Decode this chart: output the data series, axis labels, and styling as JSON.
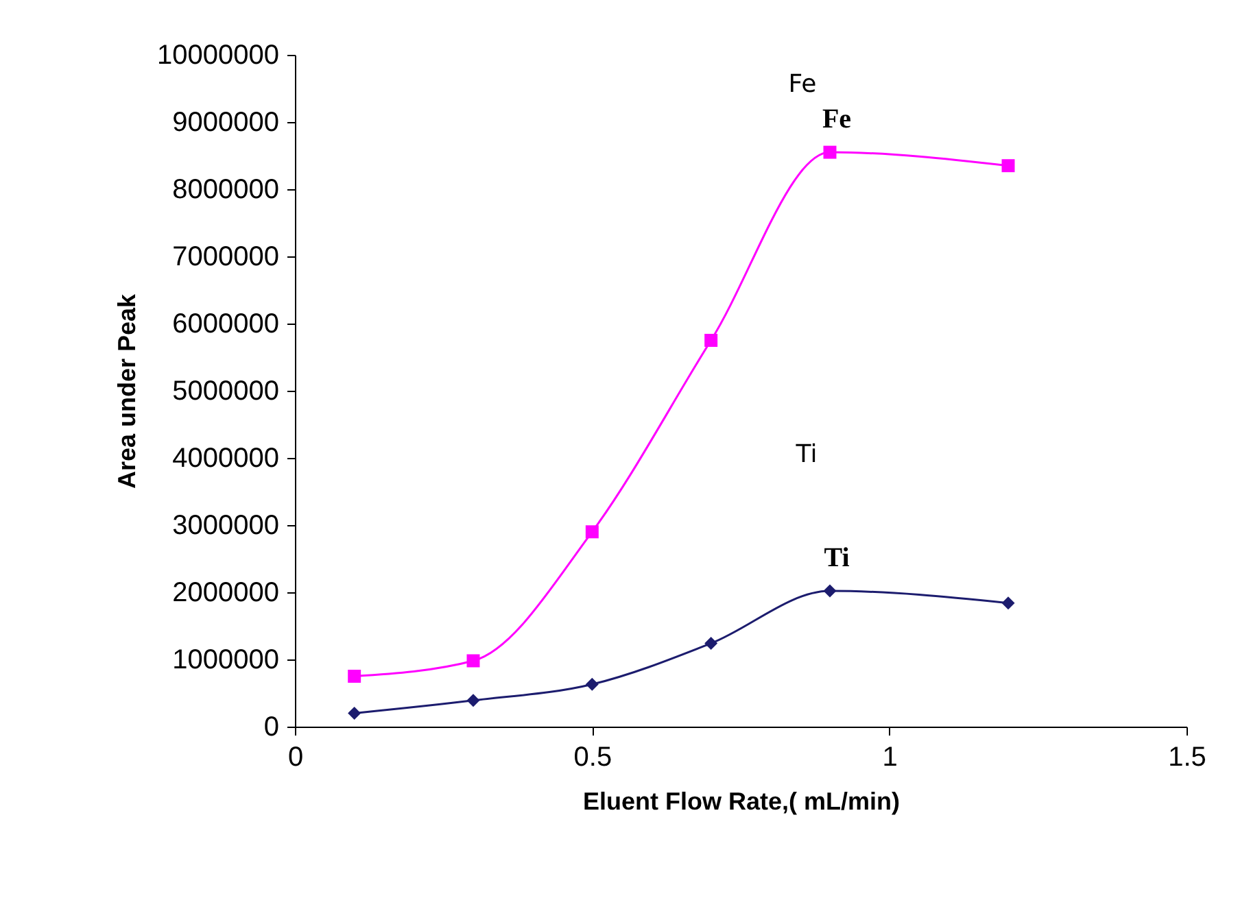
{
  "chart_data": {
    "type": "line",
    "xlabel": "Eluent Flow Rate,( mL/min)",
    "ylabel": "Area under Peak",
    "x": [
      0.1,
      0.3,
      0.5,
      0.7,
      0.9,
      1.2
    ],
    "series": [
      {
        "name": "Fe",
        "color": "#ff00ff",
        "marker": "square",
        "values": [
          750000,
          980000,
          2900000,
          5750000,
          8550000,
          8350000
        ]
      },
      {
        "name": "Ti",
        "color": "#1c1c6e",
        "marker": "diamond",
        "values": [
          200000,
          390000,
          630000,
          1240000,
          2020000,
          1840000
        ]
      }
    ],
    "annotations": [
      "Fe",
      "Ti"
    ],
    "xlim": [
      0,
      1.5
    ],
    "xticks": [
      0,
      0.5,
      1,
      1.5
    ],
    "ylim": [
      0,
      10000000
    ],
    "yticks": [
      0,
      1000000,
      2000000,
      3000000,
      4000000,
      5000000,
      6000000,
      7000000,
      8000000,
      9000000,
      10000000
    ],
    "grid": false,
    "line_style": "solid"
  }
}
